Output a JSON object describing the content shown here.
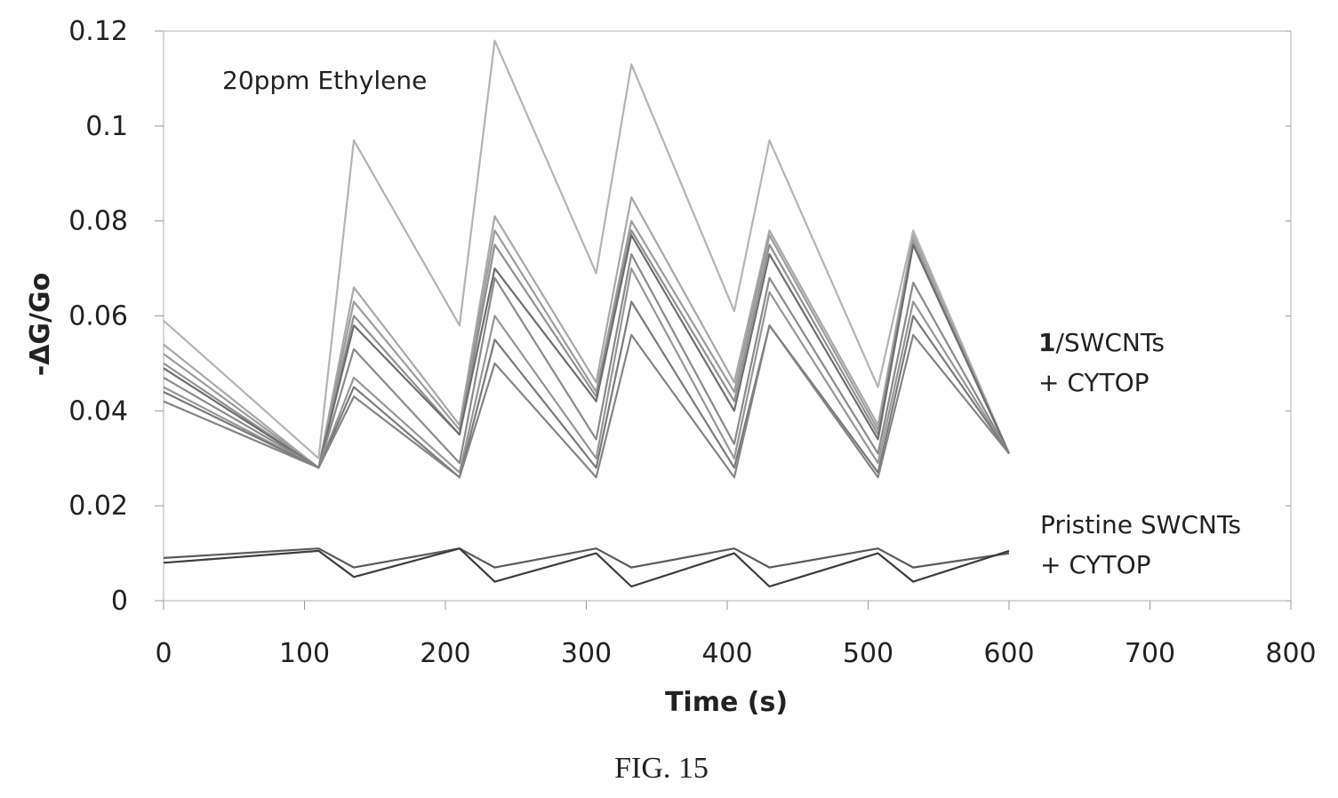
{
  "chart_data": {
    "type": "line",
    "xlabel": "Time (s)",
    "ylabel": "-ΔG/Go",
    "xlim": [
      0,
      800
    ],
    "ylim": [
      0,
      0.12
    ],
    "x_ticks": [
      0,
      100,
      200,
      300,
      400,
      500,
      600,
      700,
      800
    ],
    "y_ticks": [
      0,
      0.02,
      0.04,
      0.06,
      0.08,
      0.1,
      0.12
    ],
    "y_tick_labels": [
      "0",
      "0.02",
      "0.04",
      "0.06",
      "0.08",
      "0.1",
      "0.12"
    ],
    "grid": false,
    "annotations": [
      {
        "text": "20ppm Ethylene"
      },
      {
        "text_bold": "1",
        "text": "/SWCNTs"
      },
      {
        "text": "+ CYTOP"
      },
      {
        "text": "Pristine SWCNTs"
      },
      {
        "text": "+ CYTOP"
      }
    ],
    "series": [
      {
        "group": "1/SWCNTs + CYTOP",
        "color": "#b4b4b4",
        "x": [
          0,
          110,
          135,
          210,
          235,
          307,
          332,
          405,
          430,
          507,
          532,
          600
        ],
        "y": [
          0.059,
          0.03,
          0.097,
          0.058,
          0.118,
          0.069,
          0.113,
          0.061,
          0.097,
          0.045,
          0.078,
          0.031
        ]
      },
      {
        "group": "1/SWCNTs + CYTOP",
        "color": "#a8a8a8",
        "x": [
          0,
          110,
          135,
          210,
          235,
          307,
          332,
          405,
          430,
          507,
          532,
          600
        ],
        "y": [
          0.054,
          0.028,
          0.066,
          0.037,
          0.081,
          0.046,
          0.085,
          0.046,
          0.078,
          0.037,
          0.077,
          0.031
        ]
      },
      {
        "group": "1/SWCNTs + CYTOP",
        "color": "#9c9c9c",
        "x": [
          0,
          110,
          135,
          210,
          235,
          307,
          332,
          405,
          430,
          507,
          532,
          600
        ],
        "y": [
          0.052,
          0.028,
          0.063,
          0.036,
          0.078,
          0.044,
          0.08,
          0.044,
          0.077,
          0.036,
          0.076,
          0.031
        ]
      },
      {
        "group": "1/SWCNTs + CYTOP",
        "color": "#909090",
        "x": [
          0,
          110,
          135,
          210,
          235,
          307,
          332,
          405,
          430,
          507,
          532,
          600
        ],
        "y": [
          0.05,
          0.028,
          0.06,
          0.035,
          0.075,
          0.043,
          0.078,
          0.042,
          0.075,
          0.035,
          0.075,
          0.031
        ]
      },
      {
        "group": "1/SWCNTs + CYTOP",
        "color": "#6e6e6e",
        "x": [
          0,
          110,
          135,
          210,
          235,
          307,
          332,
          405,
          430,
          507,
          532,
          600
        ],
        "y": [
          0.049,
          0.028,
          0.058,
          0.035,
          0.07,
          0.042,
          0.077,
          0.04,
          0.073,
          0.034,
          0.075,
          0.031
        ]
      },
      {
        "group": "1/SWCNTs + CYTOP",
        "color": "#8a8a8a",
        "x": [
          0,
          110,
          135,
          210,
          235,
          307,
          332,
          405,
          430,
          507,
          532,
          600
        ],
        "y": [
          0.047,
          0.028,
          0.053,
          0.029,
          0.068,
          0.034,
          0.073,
          0.033,
          0.068,
          0.031,
          0.067,
          0.031
        ]
      },
      {
        "group": "1/SWCNTs + CYTOP",
        "color": "#969696",
        "x": [
          0,
          110,
          135,
          210,
          235,
          307,
          332,
          405,
          430,
          507,
          532,
          600
        ],
        "y": [
          0.045,
          0.028,
          0.047,
          0.027,
          0.06,
          0.03,
          0.07,
          0.03,
          0.065,
          0.029,
          0.063,
          0.031
        ]
      },
      {
        "group": "1/SWCNTs + CYTOP",
        "color": "#7a7a7a",
        "x": [
          0,
          110,
          135,
          210,
          235,
          307,
          332,
          405,
          430,
          507,
          532,
          600
        ],
        "y": [
          0.044,
          0.028,
          0.045,
          0.026,
          0.055,
          0.028,
          0.063,
          0.028,
          0.058,
          0.027,
          0.06,
          0.031
        ]
      },
      {
        "group": "1/SWCNTs + CYTOP",
        "color": "#848484",
        "x": [
          0,
          110,
          135,
          210,
          235,
          307,
          332,
          405,
          430,
          507,
          532,
          600
        ],
        "y": [
          0.042,
          0.028,
          0.043,
          0.026,
          0.05,
          0.026,
          0.056,
          0.026,
          0.058,
          0.026,
          0.056,
          0.031
        ]
      },
      {
        "group": "Pristine SWCNTs + CYTOP",
        "color": "#5a5a5a",
        "x": [
          0,
          110,
          135,
          210,
          235,
          307,
          332,
          405,
          430,
          507,
          532,
          600
        ],
        "y": [
          0.009,
          0.011,
          0.007,
          0.011,
          0.007,
          0.011,
          0.007,
          0.011,
          0.007,
          0.011,
          0.007,
          0.01
        ]
      },
      {
        "group": "Pristine SWCNTs + CYTOP",
        "color": "#3c3c3c",
        "x": [
          0,
          110,
          135,
          210,
          235,
          307,
          332,
          405,
          430,
          507,
          532,
          600
        ],
        "y": [
          0.008,
          0.0105,
          0.005,
          0.011,
          0.004,
          0.01,
          0.003,
          0.01,
          0.003,
          0.01,
          0.004,
          0.0105
        ]
      }
    ]
  },
  "caption": "FIG. 15"
}
